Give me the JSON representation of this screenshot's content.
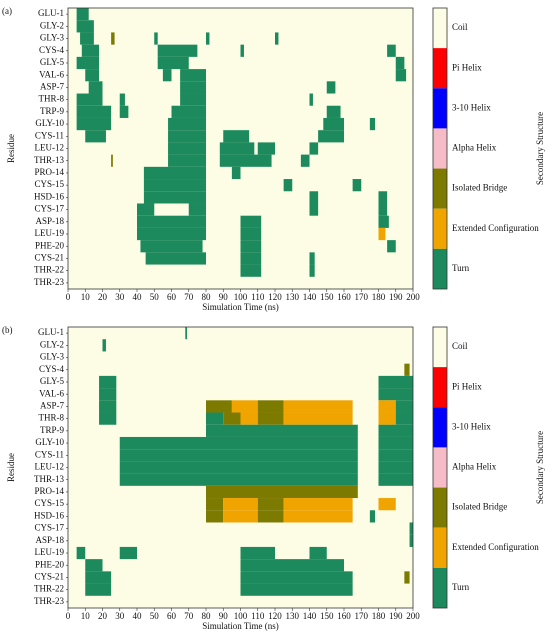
{
  "chart_data": [
    {
      "type": "timeline",
      "panel_label": "(a)",
      "x_label": "Simulation Time (ns)",
      "y_label": "Residue",
      "colorbar_title": "Secondary Structure",
      "xlim": [
        0,
        200
      ],
      "xticks": [
        0,
        10,
        20,
        30,
        40,
        50,
        60,
        70,
        80,
        90,
        100,
        110,
        120,
        130,
        140,
        150,
        160,
        170,
        180,
        190,
        200
      ],
      "legend": [
        {
          "label": "Coil",
          "color": "#fdfde6"
        },
        {
          "label": "Pi Helix",
          "color": "#ff0000"
        },
        {
          "label": "3-10 Helix",
          "color": "#0000ff"
        },
        {
          "label": "Alpha Helix",
          "color": "#f5bcc8"
        },
        {
          "label": "Isolated Bridge",
          "color": "#7d7a00"
        },
        {
          "label": "Extended Configuration",
          "color": "#f0a400"
        },
        {
          "label": "Turn",
          "color": "#1c8a5c"
        }
      ],
      "residues": [
        {
          "name": "GLU-1",
          "segments": [
            [
              5,
              12,
              6
            ]
          ]
        },
        {
          "name": "GLY-2",
          "segments": [
            [
              5,
              15,
              6
            ]
          ]
        },
        {
          "name": "GLY-3",
          "segments": [
            [
              7,
              15,
              6
            ],
            [
              25,
              27,
              4
            ],
            [
              50,
              52,
              6
            ],
            [
              80,
              82,
              6
            ],
            [
              120,
              122,
              6
            ]
          ]
        },
        {
          "name": "CYS-4",
          "segments": [
            [
              8,
              18,
              6
            ],
            [
              52,
              75,
              6
            ],
            [
              100,
              102,
              6
            ],
            [
              185,
              190,
              6
            ]
          ]
        },
        {
          "name": "GLY-5",
          "segments": [
            [
              5,
              18,
              6
            ],
            [
              52,
              70,
              6
            ],
            [
              190,
              195,
              6
            ]
          ]
        },
        {
          "name": "VAL-6",
          "segments": [
            [
              10,
              18,
              6
            ],
            [
              55,
              60,
              6
            ],
            [
              65,
              80,
              6
            ],
            [
              190,
              196,
              6
            ]
          ]
        },
        {
          "name": "ASP-7",
          "segments": [
            [
              12,
              20,
              6
            ],
            [
              65,
              80,
              6
            ],
            [
              150,
              155,
              6
            ]
          ]
        },
        {
          "name": "THR-8",
          "segments": [
            [
              5,
              20,
              6
            ],
            [
              30,
              33,
              6
            ],
            [
              65,
              80,
              6
            ],
            [
              140,
              142,
              6
            ]
          ]
        },
        {
          "name": "TRP-9",
          "segments": [
            [
              5,
              25,
              6
            ],
            [
              30,
              35,
              6
            ],
            [
              60,
              80,
              6
            ],
            [
              150,
              158,
              6
            ]
          ]
        },
        {
          "name": "GLY-10",
          "segments": [
            [
              5,
              25,
              6
            ],
            [
              58,
              80,
              6
            ],
            [
              148,
              160,
              6
            ],
            [
              175,
              178,
              6
            ]
          ]
        },
        {
          "name": "CYS-11",
          "segments": [
            [
              10,
              22,
              6
            ],
            [
              58,
              80,
              6
            ],
            [
              90,
              105,
              6
            ],
            [
              145,
              160,
              6
            ]
          ]
        },
        {
          "name": "LEU-12",
          "segments": [
            [
              58,
              80,
              6
            ],
            [
              88,
              108,
              6
            ],
            [
              110,
              120,
              6
            ],
            [
              140,
              145,
              6
            ]
          ]
        },
        {
          "name": "THR-13",
          "segments": [
            [
              25,
              26,
              4
            ],
            [
              58,
              80,
              6
            ],
            [
              88,
              118,
              6
            ],
            [
              135,
              140,
              6
            ]
          ]
        },
        {
          "name": "PRO-14",
          "segments": [
            [
              44,
              80,
              6
            ],
            [
              95,
              100,
              6
            ]
          ]
        },
        {
          "name": "CYS-15",
          "segments": [
            [
              44,
              80,
              6
            ],
            [
              125,
              130,
              6
            ],
            [
              165,
              170,
              6
            ]
          ]
        },
        {
          "name": "HSD-16",
          "segments": [
            [
              44,
              80,
              6
            ],
            [
              140,
              145,
              6
            ],
            [
              180,
              185,
              6
            ]
          ]
        },
        {
          "name": "CYS-17",
          "segments": [
            [
              40,
              50,
              6
            ],
            [
              70,
              80,
              6
            ],
            [
              140,
              145,
              6
            ],
            [
              180,
              185,
              6
            ]
          ]
        },
        {
          "name": "ASP-18",
          "segments": [
            [
              40,
              80,
              6
            ],
            [
              100,
              112,
              6
            ],
            [
              180,
              186,
              6
            ]
          ]
        },
        {
          "name": "LEU-19",
          "segments": [
            [
              40,
              80,
              6
            ],
            [
              100,
              112,
              6
            ],
            [
              180,
              184,
              5
            ]
          ]
        },
        {
          "name": "PHE-20",
          "segments": [
            [
              42,
              78,
              6
            ],
            [
              100,
              112,
              6
            ],
            [
              185,
              190,
              6
            ]
          ]
        },
        {
          "name": "CYS-21",
          "segments": [
            [
              45,
              80,
              6
            ],
            [
              100,
              112,
              6
            ],
            [
              140,
              143,
              6
            ]
          ]
        },
        {
          "name": "THR-22",
          "segments": [
            [
              100,
              112,
              6
            ],
            [
              140,
              143,
              6
            ]
          ]
        },
        {
          "name": "THR-23",
          "segments": []
        }
      ]
    },
    {
      "type": "timeline",
      "panel_label": "(b)",
      "x_label": "Simulation Time (ns)",
      "y_label": "Residue",
      "colorbar_title": "Secondary Structure",
      "xlim": [
        0,
        200
      ],
      "xticks": [
        0,
        10,
        20,
        30,
        40,
        50,
        60,
        70,
        80,
        90,
        100,
        110,
        120,
        130,
        140,
        150,
        160,
        170,
        180,
        190,
        200
      ],
      "legend": [
        {
          "label": "Coil",
          "color": "#fdfde6"
        },
        {
          "label": "Pi Helix",
          "color": "#ff0000"
        },
        {
          "label": "3-10 Helix",
          "color": "#0000ff"
        },
        {
          "label": "Alpha Helix",
          "color": "#f5bcc8"
        },
        {
          "label": "Isolated Bridge",
          "color": "#7d7a00"
        },
        {
          "label": "Extended Configuration",
          "color": "#f0a400"
        },
        {
          "label": "Turn",
          "color": "#1c8a5c"
        }
      ],
      "residues": [
        {
          "name": "GLU-1",
          "segments": [
            [
              68,
              69,
              6
            ]
          ]
        },
        {
          "name": "GLY-2",
          "segments": [
            [
              20,
              22,
              6
            ]
          ]
        },
        {
          "name": "GLY-3",
          "segments": []
        },
        {
          "name": "CYS-4",
          "segments": [
            [
              195,
              198,
              4
            ]
          ]
        },
        {
          "name": "GLY-5",
          "segments": [
            [
              18,
              28,
              6
            ],
            [
              180,
              200,
              6
            ]
          ]
        },
        {
          "name": "VAL-6",
          "segments": [
            [
              18,
              28,
              6
            ],
            [
              180,
              200,
              6
            ]
          ]
        },
        {
          "name": "ASP-7",
          "segments": [
            [
              18,
              28,
              6
            ],
            [
              80,
              95,
              4
            ],
            [
              95,
              110,
              5
            ],
            [
              110,
              125,
              4
            ],
            [
              125,
              165,
              5
            ],
            [
              180,
              190,
              5
            ],
            [
              190,
              200,
              6
            ]
          ]
        },
        {
          "name": "THR-8",
          "segments": [
            [
              18,
              28,
              6
            ],
            [
              80,
              90,
              6
            ],
            [
              90,
              100,
              4
            ],
            [
              100,
              110,
              5
            ],
            [
              110,
              125,
              4
            ],
            [
              125,
              165,
              5
            ],
            [
              180,
              190,
              5
            ],
            [
              190,
              200,
              6
            ]
          ]
        },
        {
          "name": "TRP-9",
          "segments": [
            [
              80,
              168,
              6
            ],
            [
              180,
              200,
              6
            ]
          ]
        },
        {
          "name": "GLY-10",
          "segments": [
            [
              30,
              168,
              6
            ],
            [
              180,
              200,
              6
            ]
          ]
        },
        {
          "name": "CYS-11",
          "segments": [
            [
              30,
              168,
              6
            ],
            [
              180,
              200,
              6
            ]
          ]
        },
        {
          "name": "LEU-12",
          "segments": [
            [
              30,
              168,
              6
            ],
            [
              180,
              200,
              6
            ]
          ]
        },
        {
          "name": "THR-13",
          "segments": [
            [
              30,
              168,
              6
            ],
            [
              180,
              200,
              6
            ]
          ]
        },
        {
          "name": "PRO-14",
          "segments": [
            [
              80,
              168,
              4
            ]
          ]
        },
        {
          "name": "CYS-15",
          "segments": [
            [
              80,
              90,
              4
            ],
            [
              90,
              110,
              5
            ],
            [
              110,
              125,
              4
            ],
            [
              125,
              165,
              5
            ],
            [
              180,
              190,
              5
            ]
          ]
        },
        {
          "name": "HSD-16",
          "segments": [
            [
              80,
              90,
              4
            ],
            [
              90,
              110,
              5
            ],
            [
              110,
              125,
              4
            ],
            [
              125,
              165,
              5
            ],
            [
              175,
              178,
              6
            ]
          ]
        },
        {
          "name": "CYS-17",
          "segments": [
            [
              198,
              200,
              6
            ]
          ]
        },
        {
          "name": "ASP-18",
          "segments": [
            [
              198,
              200,
              6
            ]
          ]
        },
        {
          "name": "LEU-19",
          "segments": [
            [
              5,
              10,
              6
            ],
            [
              30,
              40,
              6
            ],
            [
              100,
              120,
              6
            ],
            [
              140,
              150,
              6
            ]
          ]
        },
        {
          "name": "PHE-20",
          "segments": [
            [
              10,
              20,
              6
            ],
            [
              100,
              160,
              6
            ]
          ]
        },
        {
          "name": "CYS-21",
          "segments": [
            [
              10,
              25,
              6
            ],
            [
              100,
              165,
              6
            ],
            [
              195,
              198,
              4
            ]
          ]
        },
        {
          "name": "THR-22",
          "segments": [
            [
              10,
              25,
              6
            ],
            [
              100,
              165,
              6
            ]
          ]
        },
        {
          "name": "THR-23",
          "segments": []
        }
      ]
    }
  ]
}
